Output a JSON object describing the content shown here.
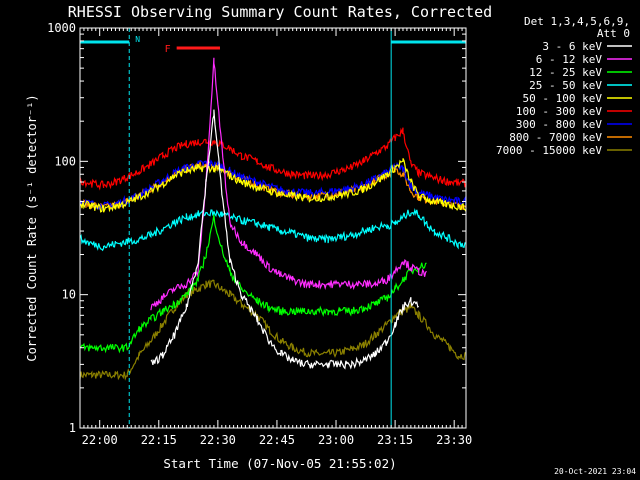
{
  "chart_data": {
    "type": "line",
    "title": "RHESSI Observing Summary Count Rates, Corrected",
    "xlabel": "Start Time (07-Nov-05 21:55:02)",
    "ylabel": "Corrected Count Rate (s⁻¹ detector⁻¹)",
    "x_tick_labels": [
      "22:00",
      "22:15",
      "22:30",
      "22:45",
      "23:00",
      "23:15",
      "23:30"
    ],
    "x_tick_minutes": [
      5,
      20,
      35,
      50,
      65,
      80,
      95
    ],
    "xlim_minutes": [
      0,
      98
    ],
    "y_scale": "log",
    "ylim": [
      1,
      1000
    ],
    "y_tick_labels": [
      "1",
      "10",
      "100",
      "1000"
    ],
    "legend_header": [
      "Det 1,3,4,5,6,9,",
      "Att 0"
    ],
    "legend_position": "right",
    "annotations": {
      "night_label": "N",
      "flare_label": "F",
      "night_intervals_min": [
        [
          0,
          12.5
        ],
        [
          79,
          98
        ]
      ],
      "flare_interval_min": [
        22,
        33
      ],
      "colors": {
        "night": "#00e5ee",
        "flare": "#ff1a1a"
      }
    },
    "x_minutes": [
      0,
      3,
      6,
      9,
      12,
      15,
      18,
      21,
      24,
      27,
      30,
      32,
      34,
      36,
      38,
      41,
      45,
      48,
      51,
      54,
      57,
      60,
      63,
      66,
      69,
      72,
      75,
      78,
      80,
      82,
      84,
      86,
      88,
      90,
      92,
      94,
      96,
      98
    ],
    "series": [
      {
        "name": "3 - 6 keV",
        "color": "#ffffff",
        "values": [
          null,
          null,
          null,
          null,
          null,
          null,
          3.0,
          3.5,
          5.0,
          8.0,
          18,
          70,
          230,
          60,
          18,
          10,
          6.5,
          4.5,
          3.6,
          3.2,
          3.0,
          3.0,
          3.0,
          3.0,
          3.0,
          3.2,
          3.6,
          4.5,
          6.0,
          8.0,
          9.0,
          8.0,
          null,
          null,
          null,
          null,
          null,
          null
        ]
      },
      {
        "name": "6 - 12 keV",
        "color": "#ff2dff",
        "values": [
          null,
          null,
          null,
          null,
          null,
          null,
          8.0,
          9.5,
          11,
          12,
          15,
          70,
          560,
          130,
          35,
          25,
          20,
          16,
          14,
          13,
          12,
          12,
          12,
          12,
          12,
          12,
          12,
          13,
          15,
          18,
          16,
          15,
          14,
          null,
          null,
          null,
          null,
          null
        ]
      },
      {
        "name": "12 - 25 keV",
        "color": "#00ff00",
        "values": [
          4.0,
          4.0,
          4.0,
          4.0,
          4.0,
          5.5,
          6.5,
          7.5,
          8.5,
          10,
          13,
          20,
          38,
          22,
          15,
          11,
          9.0,
          8.0,
          7.5,
          7.5,
          7.5,
          7.5,
          7.5,
          7.5,
          7.5,
          8.0,
          8.5,
          9.5,
          11,
          13,
          15,
          16,
          17,
          null,
          null,
          null,
          null,
          null
        ]
      },
      {
        "name": "25 - 50 keV",
        "color": "#00ffff",
        "values": [
          26,
          24,
          23,
          24,
          25,
          26,
          28,
          31,
          35,
          38,
          40,
          41,
          41,
          40,
          38,
          36,
          34,
          32,
          30,
          29,
          27,
          26,
          26,
          27,
          28,
          30,
          32,
          33,
          34,
          38,
          42,
          40,
          34,
          30,
          28,
          26,
          24,
          24
        ]
      },
      {
        "name": "50 - 100 keV",
        "color": "#ffff00",
        "values": [
          48,
          46,
          44,
          46,
          49,
          54,
          60,
          68,
          78,
          85,
          88,
          90,
          88,
          85,
          78,
          70,
          64,
          60,
          57,
          55,
          53,
          53,
          54,
          56,
          58,
          62,
          70,
          80,
          90,
          100,
          70,
          55,
          52,
          50,
          48,
          47,
          46,
          45
        ]
      },
      {
        "name": "100 - 300 keV",
        "color": "#ff0000",
        "values": [
          72,
          68,
          66,
          70,
          76,
          84,
          95,
          110,
          125,
          135,
          140,
          142,
          140,
          135,
          125,
          110,
          100,
          90,
          84,
          80,
          78,
          78,
          80,
          85,
          90,
          100,
          115,
          130,
          150,
          170,
          95,
          82,
          78,
          75,
          72,
          70,
          69,
          68
        ]
      },
      {
        "name": "300 - 800 keV",
        "color": "#0000ff",
        "values": [
          50,
          48,
          46,
          48,
          51,
          56,
          63,
          72,
          82,
          90,
          95,
          97,
          95,
          92,
          85,
          76,
          70,
          65,
          61,
          59,
          58,
          58,
          59,
          61,
          63,
          67,
          74,
          83,
          92,
          88,
          66,
          58,
          56,
          54,
          52,
          51,
          50,
          50
        ]
      },
      {
        "name": "800 - 7000 keV",
        "color": "#ff8c00",
        "values": [
          49,
          47,
          45,
          47,
          50,
          55,
          62,
          70,
          80,
          88,
          92,
          93,
          92,
          88,
          82,
          74,
          67,
          62,
          58,
          56,
          55,
          55,
          56,
          58,
          60,
          64,
          72,
          80,
          88,
          80,
          60,
          54,
          52,
          50,
          49,
          48,
          47,
          46
        ]
      },
      {
        "name": "7000 - 15000 keV",
        "color": "#8b8000",
        "values": [
          2.5,
          2.5,
          2.5,
          2.5,
          2.5,
          3.5,
          4.5,
          6.0,
          8.0,
          10,
          11,
          12,
          12,
          11,
          10,
          8.5,
          7.0,
          5.5,
          4.5,
          4.0,
          3.7,
          3.6,
          3.6,
          3.7,
          3.9,
          4.2,
          5.0,
          6.0,
          7.0,
          7.5,
          8.0,
          7.0,
          6.0,
          5.0,
          4.5,
          4.0,
          3.5,
          3.5
        ]
      }
    ]
  },
  "timestamp": "20-Oct-2021 23:04"
}
